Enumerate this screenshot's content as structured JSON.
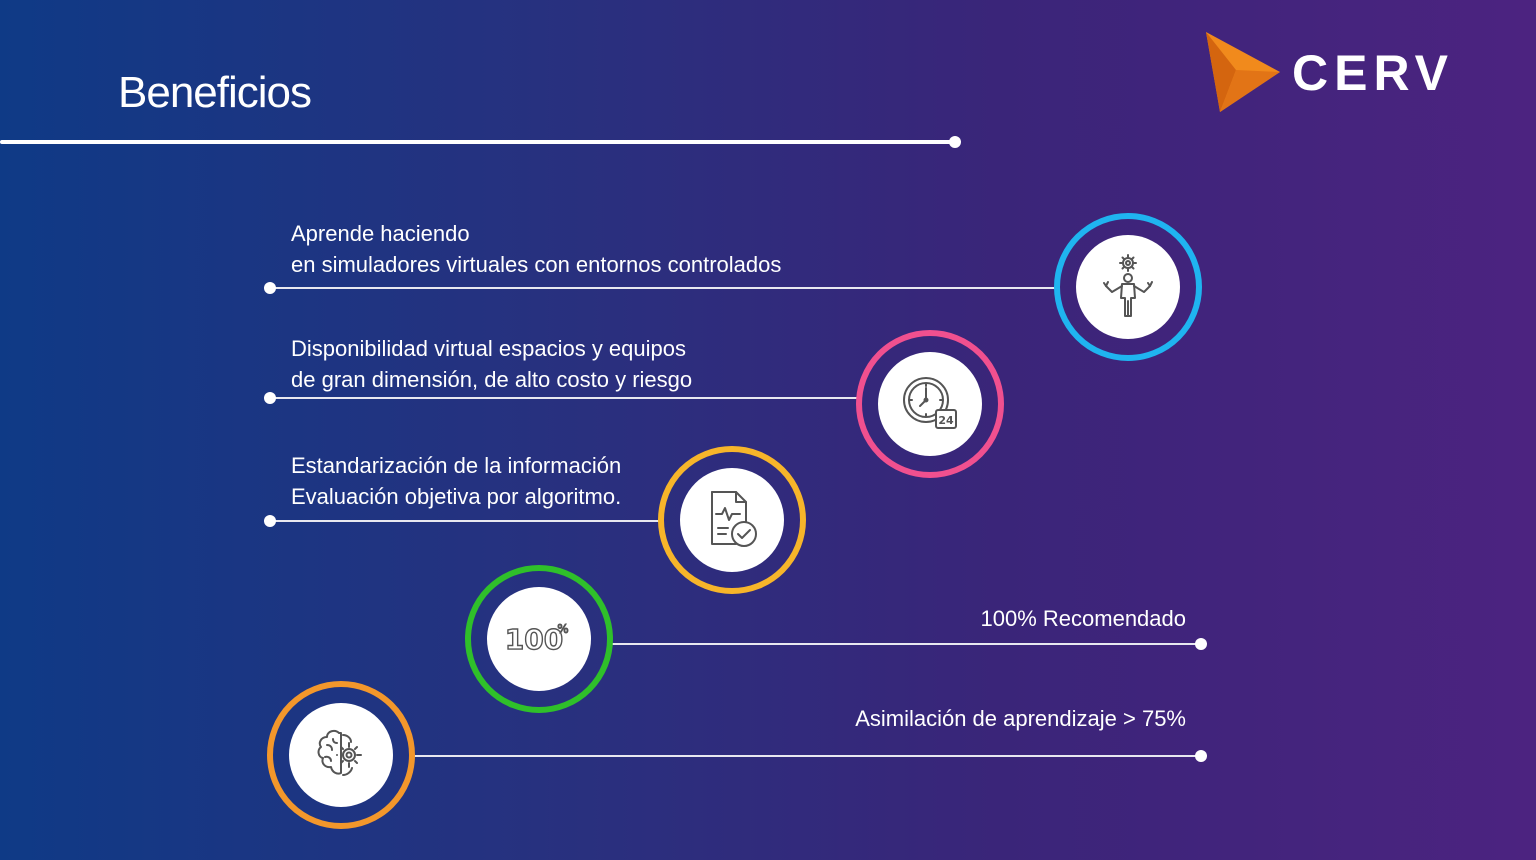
{
  "header": {
    "title": "Beneficios",
    "logo_text": "CERV",
    "logo_colors": {
      "orange": "#f18a1c",
      "dark_orange": "#d4650f"
    }
  },
  "benefits": [
    {
      "line1": "Aprende haciendo",
      "line2": "en simuladores virtuales con entornos controlados",
      "icon": "person-gear-icon",
      "ring_color": "#1fb4f0"
    },
    {
      "line1": "Disponibilidad virtual espacios y equipos",
      "line2": "de gran dimensión, de alto costo y riesgo",
      "icon": "clock-24-icon",
      "ring_color": "#f0508f"
    },
    {
      "line1": "Estandarización de la información",
      "line2": "Evaluación objetiva por algoritmo.",
      "icon": "document-check-icon",
      "ring_color": "#f7b52a"
    },
    {
      "line1": "100% Recomendado",
      "icon": "hundred-percent-icon",
      "icon_text": "100",
      "icon_symbol": "%",
      "ring_color": "#2fc02a"
    },
    {
      "line1": "Asimilación de aprendizaje > 75%",
      "icon": "brain-gear-icon",
      "ring_color": "#f3972b"
    }
  ]
}
